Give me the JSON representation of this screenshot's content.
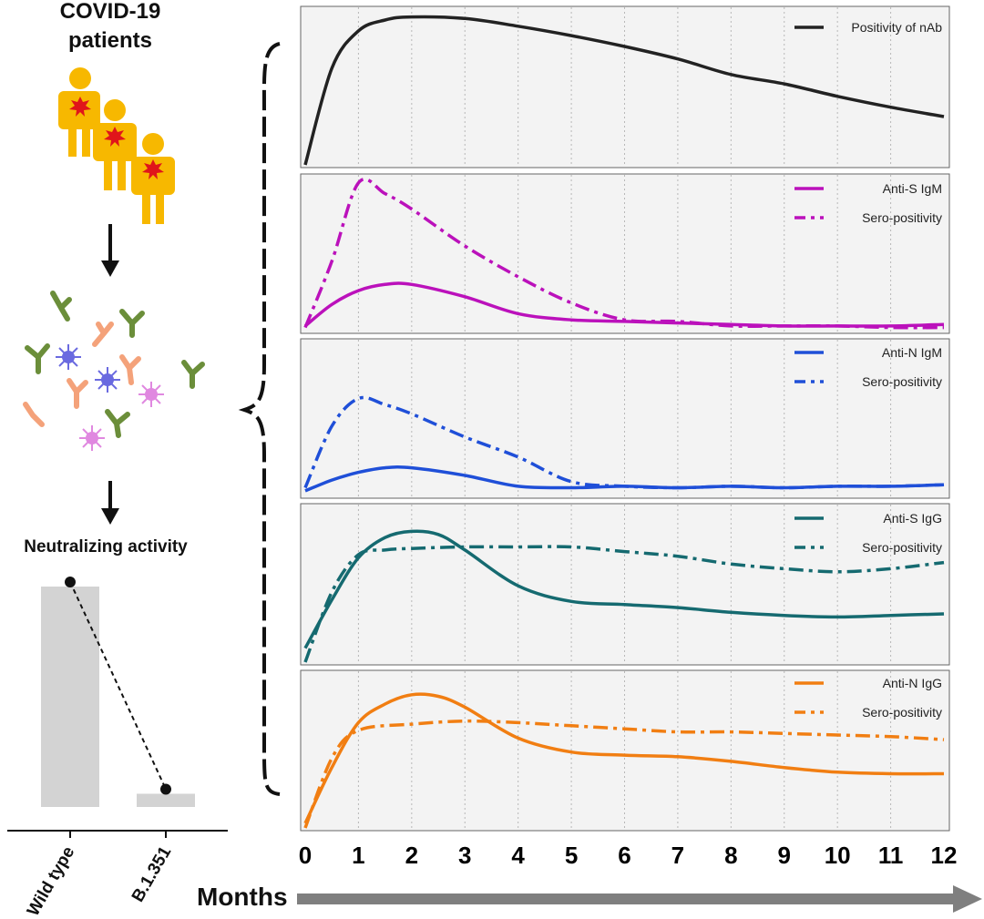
{
  "left_panel": {
    "title_line1": "COVID-19",
    "title_line2": "patients",
    "neutralizing_label": "Neutralizing activity",
    "bar_categories": [
      "Wild type",
      "B.1.351"
    ],
    "bar_values": [
      1.0,
      0.06
    ]
  },
  "x_axis": {
    "label": "Months",
    "ticks": [
      "0",
      "1",
      "2",
      "3",
      "4",
      "5",
      "6",
      "7",
      "8",
      "9",
      "10",
      "11",
      "12"
    ]
  },
  "colors": {
    "black": "#222222",
    "magenta": "#bb11bb",
    "blue": "#1f4fd8",
    "teal": "#156a70",
    "orange": "#f17e12",
    "panel_bg": "#f3f3f3",
    "bar": "#d3d3d3",
    "antibody_green": "#6b8e3a",
    "antibody_peach": "#f4a27a",
    "virus_blue": "#6a6ae0",
    "virus_pink": "#e088e0",
    "person": "#f7b800",
    "arrow_gray": "#7f7f7f"
  },
  "chart_data": [
    {
      "type": "line",
      "xlim": [
        0,
        12
      ],
      "ylim": [
        0,
        1
      ],
      "series": [
        {
          "name": "Positivity of nAb",
          "style": "solid",
          "color": "#222222",
          "x": [
            0,
            0.5,
            1,
            1.5,
            2,
            3,
            4,
            5,
            6,
            7,
            8,
            9,
            10,
            11,
            12
          ],
          "y": [
            0.0,
            0.62,
            0.86,
            0.93,
            0.95,
            0.94,
            0.89,
            0.83,
            0.76,
            0.68,
            0.58,
            0.52,
            0.44,
            0.37,
            0.31
          ]
        }
      ]
    },
    {
      "type": "line",
      "xlim": [
        0,
        12
      ],
      "ylim": [
        0,
        1
      ],
      "series": [
        {
          "name": "Anti-S IgM",
          "style": "solid",
          "color": "#bb11bb",
          "x": [
            0,
            0.5,
            1,
            1.5,
            2,
            3,
            4,
            5,
            6,
            7,
            8,
            9,
            10,
            11,
            12
          ],
          "y": [
            0.03,
            0.17,
            0.26,
            0.3,
            0.3,
            0.22,
            0.11,
            0.07,
            0.06,
            0.05,
            0.04,
            0.03,
            0.03,
            0.03,
            0.04
          ]
        },
        {
          "name": "Sero-positivity",
          "style": "dashdot",
          "color": "#bb11bb",
          "x": [
            0,
            0.5,
            1,
            1.5,
            2,
            3,
            4,
            5,
            6,
            7,
            8,
            9,
            10,
            11,
            12
          ],
          "y": [
            0.02,
            0.45,
            0.96,
            0.89,
            0.79,
            0.55,
            0.35,
            0.18,
            0.07,
            0.06,
            0.03,
            0.03,
            0.03,
            0.02,
            0.02
          ]
        }
      ]
    },
    {
      "type": "line",
      "xlim": [
        0,
        12
      ],
      "ylim": [
        0,
        1
      ],
      "series": [
        {
          "name": "Anti-N IgM",
          "style": "solid",
          "color": "#1f4fd8",
          "x": [
            0,
            0.5,
            1,
            1.5,
            2,
            3,
            4,
            5,
            6,
            7,
            8,
            9,
            10,
            11,
            12
          ],
          "y": [
            0.03,
            0.1,
            0.15,
            0.18,
            0.18,
            0.13,
            0.06,
            0.05,
            0.06,
            0.05,
            0.06,
            0.05,
            0.06,
            0.06,
            0.07
          ]
        },
        {
          "name": "Sero-positivity",
          "style": "dashdot",
          "color": "#1f4fd8",
          "x": [
            0,
            0.5,
            1,
            1.5,
            2,
            3,
            4,
            5,
            6,
            7,
            8,
            9,
            10,
            11,
            12
          ],
          "y": [
            0.05,
            0.45,
            0.63,
            0.59,
            0.53,
            0.38,
            0.25,
            0.09,
            0.06,
            0.05,
            0.06,
            0.05,
            0.06,
            0.06,
            0.07
          ]
        }
      ]
    },
    {
      "type": "line",
      "xlim": [
        0,
        12
      ],
      "ylim": [
        0,
        1
      ],
      "series": [
        {
          "name": "Anti-S IgG",
          "style": "solid",
          "color": "#156a70",
          "x": [
            0,
            0.5,
            1,
            1.5,
            2,
            2.5,
            3,
            4,
            5,
            6,
            7,
            8,
            9,
            10,
            11,
            12
          ],
          "y": [
            0.09,
            0.4,
            0.67,
            0.8,
            0.84,
            0.82,
            0.72,
            0.49,
            0.39,
            0.37,
            0.35,
            0.32,
            0.3,
            0.29,
            0.3,
            0.31
          ]
        },
        {
          "name": "Sero-positivity",
          "style": "dashdot",
          "color": "#156a70",
          "x": [
            0,
            0.5,
            1,
            1.5,
            2,
            3,
            4,
            5,
            6,
            7,
            8,
            9,
            10,
            11,
            12
          ],
          "y": [
            0.0,
            0.45,
            0.69,
            0.72,
            0.73,
            0.74,
            0.74,
            0.74,
            0.71,
            0.68,
            0.63,
            0.6,
            0.58,
            0.6,
            0.64
          ]
        }
      ]
    },
    {
      "type": "line",
      "xlim": [
        0,
        12
      ],
      "ylim": [
        0,
        1
      ],
      "series": [
        {
          "name": "Anti-N IgG",
          "style": "solid",
          "color": "#f17e12",
          "x": [
            0,
            0.5,
            1,
            1.5,
            2,
            2.5,
            3,
            4,
            5,
            6,
            7,
            8,
            9,
            10,
            11,
            12
          ],
          "y": [
            0.03,
            0.39,
            0.68,
            0.8,
            0.86,
            0.85,
            0.78,
            0.58,
            0.49,
            0.47,
            0.46,
            0.43,
            0.39,
            0.36,
            0.35,
            0.35
          ]
        },
        {
          "name": "Sero-positivity",
          "style": "dashdot",
          "color": "#f17e12",
          "x": [
            0,
            0.5,
            1,
            2,
            3,
            4,
            5,
            6,
            7,
            8,
            9,
            10,
            11,
            12
          ],
          "y": [
            0.0,
            0.45,
            0.63,
            0.67,
            0.69,
            0.68,
            0.66,
            0.64,
            0.62,
            0.62,
            0.61,
            0.6,
            0.59,
            0.57
          ]
        }
      ]
    }
  ]
}
